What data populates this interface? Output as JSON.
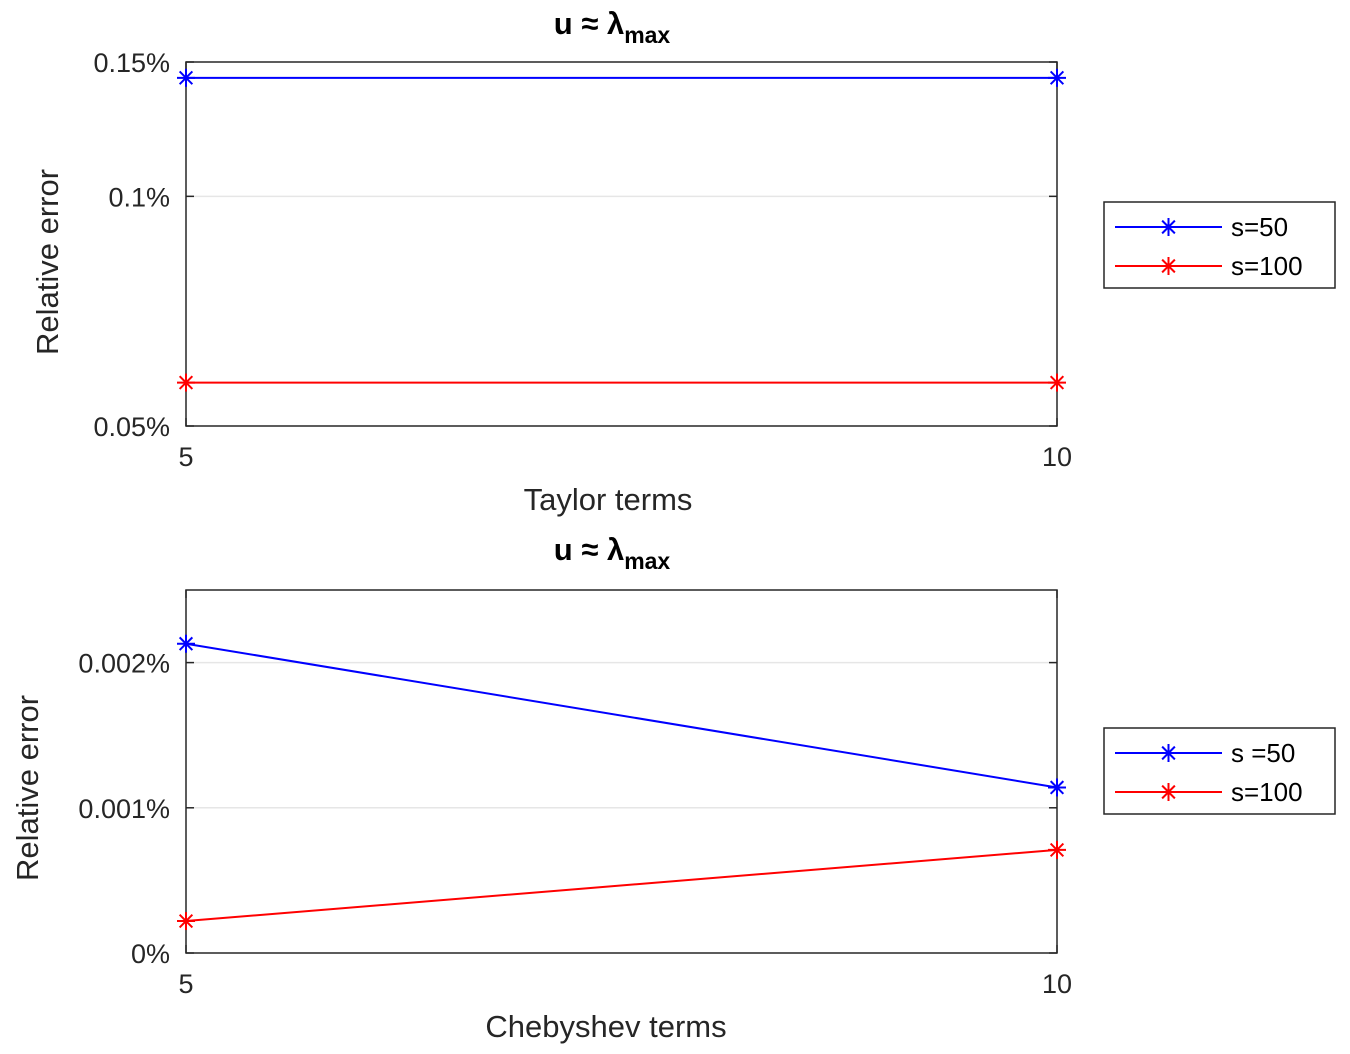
{
  "chart_data": [
    {
      "type": "line",
      "title_main": "u ≈ λ",
      "title_sub": "max",
      "xlabel": "Taylor terms",
      "ylabel": "Relative error",
      "x": [
        5,
        10
      ],
      "xlim": [
        5,
        10
      ],
      "ylim": [
        0.05,
        0.15
      ],
      "y_scale": "log",
      "y_unit": "%",
      "xticks": [
        "5",
        "10"
      ],
      "yticks": [
        {
          "value": 0.05,
          "label": "0.05%"
        },
        {
          "value": 0.1,
          "label": "0.1%"
        },
        {
          "value": 0.15,
          "label": "0.15%"
        }
      ],
      "grid": "y-major",
      "legend_position": "outside-right",
      "marker": "asterisk",
      "series": [
        {
          "name": "s=50",
          "color": "#0000ff",
          "values": [
            0.143,
            0.143
          ]
        },
        {
          "name": "s=100",
          "color": "#ff0000",
          "values": [
            0.057,
            0.057
          ]
        }
      ]
    },
    {
      "type": "line",
      "title_main": "u ≈ λ",
      "title_sub": "max",
      "xlabel": "Chebyshev terms",
      "ylabel": "Relative error",
      "x": [
        5,
        10
      ],
      "xlim": [
        5,
        10
      ],
      "ylim": [
        0,
        0.0025
      ],
      "y_scale": "linear",
      "y_unit": "%",
      "xticks": [
        "5",
        "10"
      ],
      "yticks": [
        {
          "value": 0,
          "label": "0%"
        },
        {
          "value": 0.001,
          "label": "0.001%"
        },
        {
          "value": 0.002,
          "label": "0.002%"
        }
      ],
      "grid": "y-major",
      "legend_position": "outside-right",
      "marker": "asterisk",
      "series": [
        {
          "name": "s =50",
          "color": "#0000ff",
          "values": [
            0.00213,
            0.00114
          ]
        },
        {
          "name": "s=100",
          "color": "#ff0000",
          "values": [
            0.00022,
            0.00071
          ]
        }
      ]
    }
  ]
}
